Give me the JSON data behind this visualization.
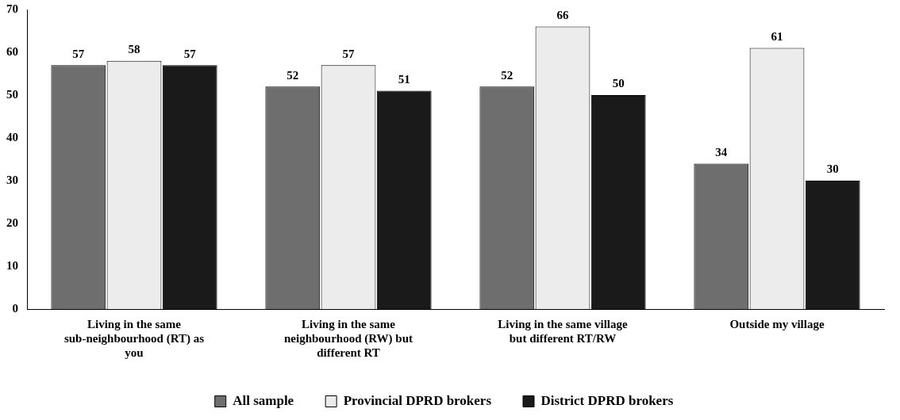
{
  "chart_data": {
    "type": "bar",
    "categories": [
      "Living in the same sub-neighbourhood (RT) as you",
      "Living in the same neighbourhood (RW) but different RT",
      "Living in the same village but different RT/RW",
      "Outside my village"
    ],
    "series": [
      {
        "name": "All sample",
        "color": "#6e6e6e",
        "values": [
          57,
          52,
          52,
          34
        ]
      },
      {
        "name": "Provincial DPRD brokers",
        "color": "#ececec",
        "values": [
          58,
          57,
          66,
          61
        ]
      },
      {
        "name": "District DPRD brokers",
        "color": "#1a1a1a",
        "values": [
          57,
          51,
          50,
          30
        ]
      }
    ],
    "ylim": [
      0,
      70
    ],
    "yticks": [
      0,
      10,
      20,
      30,
      40,
      50,
      60,
      70
    ],
    "grid": false,
    "legend": "bottom",
    "data_labels": true
  }
}
